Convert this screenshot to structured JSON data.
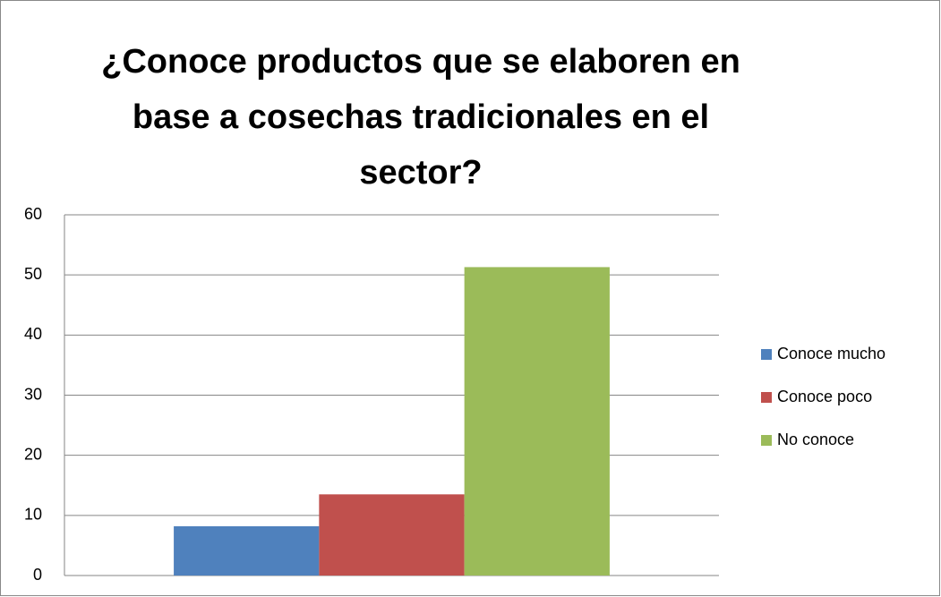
{
  "chart_data": {
    "type": "bar",
    "title": "¿Conoce productos que se elaboren en base a cosechas tradicionales en el sector?",
    "categories": [
      null
    ],
    "series": [
      {
        "name": "Conoce mucho",
        "color": "#4f81bd",
        "values": [
          8.2
        ]
      },
      {
        "name": "Conoce poco",
        "color": "#c0504d",
        "values": [
          13.5
        ]
      },
      {
        "name": "No conoce",
        "color": "#9bbb59",
        "values": [
          51.3
        ]
      }
    ],
    "ylim": [
      0,
      60
    ],
    "yticks": [
      0,
      10,
      20,
      30,
      40,
      50,
      60
    ],
    "grid": true,
    "legend": "right"
  }
}
